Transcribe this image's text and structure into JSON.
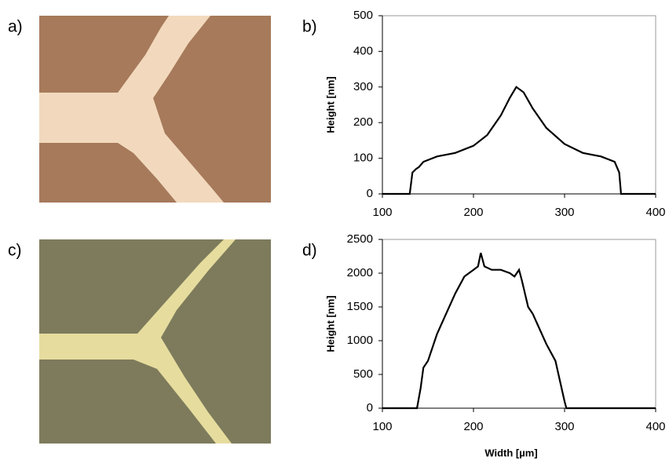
{
  "panels": [
    "a)",
    "c)"
  ],
  "chart_data": [
    {
      "type": "line",
      "panel_label": "b)",
      "ylabel": "Height [nm]",
      "x": [
        100,
        130,
        133,
        137,
        140,
        145,
        160,
        180,
        200,
        215,
        230,
        240,
        247,
        255,
        265,
        280,
        300,
        320,
        340,
        355,
        360,
        362,
        400
      ],
      "series": [
        {
          "color": "#000000",
          "values": [
            0,
            0,
            60,
            70,
            75,
            90,
            105,
            115,
            135,
            165,
            220,
            270,
            300,
            285,
            240,
            185,
            140,
            115,
            105,
            90,
            60,
            0,
            0
          ]
        }
      ],
      "xlim": [
        100,
        400
      ],
      "xticks": [
        100,
        200,
        300,
        400
      ],
      "ylim": [
        0,
        500
      ],
      "yticks": [
        0,
        100,
        200,
        300,
        400,
        500
      ]
    },
    {
      "type": "line",
      "panel_label": "d)",
      "ylabel": "Height [nm]",
      "xlabel": "Width [µm]",
      "x": [
        100,
        138,
        142,
        145,
        150,
        160,
        170,
        180,
        190,
        200,
        205,
        208,
        212,
        220,
        230,
        240,
        245,
        250,
        253,
        260,
        265,
        270,
        280,
        290,
        295,
        300,
        302,
        400
      ],
      "series": [
        {
          "color": "#000000",
          "values": [
            0,
            0,
            300,
            600,
            700,
            1100,
            1400,
            1700,
            1950,
            2050,
            2100,
            2300,
            2100,
            2050,
            2050,
            2000,
            1950,
            2050,
            1900,
            1500,
            1400,
            1250,
            950,
            700,
            400,
            100,
            0,
            0
          ]
        }
      ],
      "xlim": [
        100,
        400
      ],
      "xticks": [
        100,
        200,
        300,
        400
      ],
      "ylim": [
        0,
        2500
      ],
      "yticks": [
        0,
        500,
        1000,
        1500,
        2000,
        2500
      ]
    }
  ]
}
